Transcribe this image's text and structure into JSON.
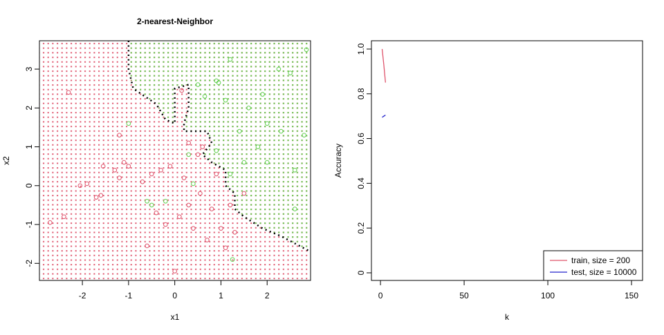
{
  "chart_data": [
    {
      "type": "knn",
      "title": "2-nearest-Neighbor",
      "xlabel": "x1",
      "ylabel": "x2",
      "xlim": [
        -2.93,
        2.94
      ],
      "ylim": [
        -2.44,
        3.73
      ],
      "xticks": [
        -2,
        -1,
        0,
        1,
        2
      ],
      "yticks": [
        -2,
        -1,
        0,
        1,
        2,
        3
      ],
      "boundary_color": "#000000",
      "boundary": {
        "x": [
          -1,
          -1,
          -0.9,
          -0.4,
          -0.2,
          0,
          0,
          0.3,
          0.3,
          0.2,
          0.2,
          0.7,
          0.8,
          0.6,
          0.8,
          1.1,
          1.1,
          1.3,
          1.3,
          1.5,
          1.9,
          2.3,
          2.94
        ],
        "y": [
          3.73,
          3.0,
          2.5,
          2.1,
          1.7,
          1.6,
          2.5,
          2.6,
          2.0,
          1.6,
          1.4,
          1.4,
          1.1,
          0.8,
          0.6,
          0.4,
          0.0,
          -0.2,
          -0.6,
          -0.8,
          -1.1,
          -1.3,
          -1.7
        ]
      },
      "classes": [
        {
          "color": "#DF536B",
          "x": [
            -2.7,
            -2.4,
            -2.05,
            -1.9,
            -1.7,
            -1.6,
            -1.55,
            -1.3,
            -1.2,
            -1.1,
            -1.0,
            -0.7,
            -0.6,
            -0.5,
            -0.4,
            -0.3,
            -0.2,
            -0.1,
            0,
            0.1,
            0.2,
            0.3,
            0.4,
            0.5,
            0.55,
            0.7,
            0.8,
            0.9,
            1.0,
            1.1,
            1.2,
            1.3,
            0.15,
            -1.2,
            -2.3,
            0.6,
            0.3,
            1.5
          ],
          "y": [
            -0.95,
            -0.8,
            0,
            0.05,
            -0.3,
            -0.25,
            0.5,
            0.4,
            0.2,
            0.6,
            0.5,
            0.1,
            -1.55,
            0.3,
            -0.7,
            0.4,
            -1.0,
            0.5,
            -2.2,
            -0.8,
            0.2,
            -0.5,
            -1.1,
            0.8,
            -0.2,
            -1.4,
            -0.6,
            0.3,
            -1.1,
            -1.6,
            -0.5,
            -1.2,
            2.45,
            1.3,
            2.4,
            1.0,
            1.1,
            -0.2
          ]
        },
        {
          "color": "#61D04F",
          "x": [
            2.85,
            1.2,
            0.9,
            0.95,
            0.5,
            0.65,
            1.1,
            1.6,
            2.0,
            2.3,
            2.5,
            2.8,
            1.4,
            1.8,
            1.5,
            2.6,
            1.2,
            0.9,
            0.3,
            -0.5,
            -0.6,
            -0.2,
            1.25,
            -1.0,
            2.6,
            2.0,
            0.4,
            1.9,
            2.25
          ],
          "y": [
            3.5,
            3.25,
            2.7,
            2.65,
            2.6,
            2.3,
            2.2,
            2.0,
            1.6,
            1.4,
            2.9,
            1.3,
            1.4,
            1.0,
            0.6,
            0.4,
            0.3,
            0.9,
            0.8,
            -0.5,
            -0.4,
            -0.4,
            -1.9,
            1.6,
            -0.6,
            0.6,
            0.05,
            2.35,
            3.0
          ]
        }
      ]
    },
    {
      "type": "line",
      "xlabel": "k",
      "ylabel": "Accuracy",
      "xlim": [
        -5.4,
        156.6
      ],
      "ylim": [
        -0.034,
        1.037
      ],
      "xticks": [
        0,
        50,
        100,
        150
      ],
      "yticks": [
        0,
        0.2,
        0.4,
        0.6,
        0.8,
        {
          "value": 1,
          "label": "1.0"
        }
      ],
      "x": [
        1,
        2,
        3
      ],
      "series": [
        {
          "name": "train, size = 200",
          "color": "#DF536B",
          "values": [
            1.0,
            0.93,
            0.85
          ]
        },
        {
          "name": "test, size = 10000",
          "color": "#2222cc",
          "values": [
            0.695,
            0.7,
            0.705
          ]
        }
      ],
      "legend": "bottom-right"
    }
  ]
}
